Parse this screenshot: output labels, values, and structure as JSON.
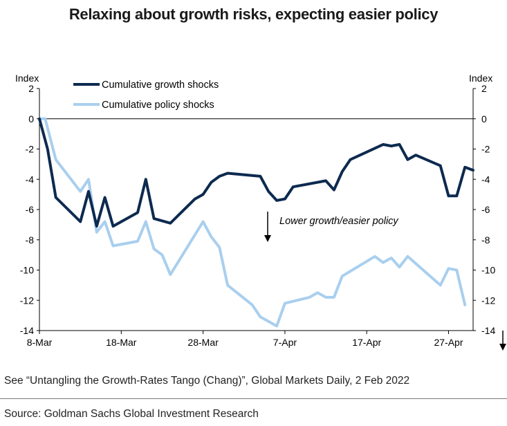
{
  "title": "Relaxing about growth risks, expecting easier policy",
  "footer": {
    "see_note": "See “Untangling the Growth-Rates Tango (Chang)”, Global Markets Daily, 2 Feb 2022",
    "source": "Source: Goldman Sachs Global Investment Research"
  },
  "chart_data": {
    "type": "line",
    "left_axis_label": "Index",
    "right_axis_label": "Index",
    "ylim": [
      -14,
      2
    ],
    "yticks": [
      2,
      0,
      -2,
      -4,
      -6,
      -8,
      -10,
      -12,
      -14
    ],
    "xticks": [
      "8-Mar",
      "18-Mar",
      "28-Mar",
      "7-Apr",
      "17-Apr",
      "27-Apr"
    ],
    "annotation": "Lower growth/easier policy",
    "colors": {
      "growth": "#0d2a4f",
      "policy": "#a9cfee"
    },
    "series": [
      {
        "name": "Cumulative growth shocks",
        "values": [
          [
            0,
            0
          ],
          [
            1,
            -2
          ],
          [
            2,
            -5.2
          ],
          [
            5,
            -6.8
          ],
          [
            6,
            -4.8
          ],
          [
            7,
            -7.1
          ],
          [
            8,
            -5.2
          ],
          [
            9,
            -7.1
          ],
          [
            12,
            -6.2
          ],
          [
            13,
            -4
          ],
          [
            14,
            -6.6
          ],
          [
            16,
            -6.9
          ],
          [
            19,
            -5.3
          ],
          [
            20,
            -5
          ],
          [
            21,
            -4.2
          ],
          [
            22,
            -3.8
          ],
          [
            23,
            -3.6
          ],
          [
            27,
            -3.8
          ],
          [
            28,
            -4.8
          ],
          [
            29,
            -5.4
          ],
          [
            30,
            -5.3
          ],
          [
            31,
            -4.5
          ],
          [
            35,
            -4.1
          ],
          [
            36,
            -4.7
          ],
          [
            37,
            -3.5
          ],
          [
            38,
            -2.7
          ],
          [
            42,
            -1.7
          ],
          [
            43,
            -1.8
          ],
          [
            44,
            -1.7
          ],
          [
            45,
            -2.7
          ],
          [
            46,
            -2.4
          ],
          [
            49,
            -3.1
          ],
          [
            50,
            -5.1
          ],
          [
            51,
            -5.1
          ],
          [
            52,
            -3.2
          ],
          [
            53,
            -3.4
          ]
        ]
      },
      {
        "name": "Cumulative policy shocks",
        "values": [
          [
            0,
            0
          ],
          [
            0.7,
            0
          ],
          [
            2,
            -2.7
          ],
          [
            5,
            -4.8
          ],
          [
            6,
            -4
          ],
          [
            7,
            -7.5
          ],
          [
            8,
            -6.8
          ],
          [
            9,
            -8.4
          ],
          [
            12,
            -8.1
          ],
          [
            13,
            -6.8
          ],
          [
            14,
            -8.6
          ],
          [
            15,
            -9
          ],
          [
            16,
            -10.3
          ],
          [
            20,
            -6.8
          ],
          [
            21,
            -7.8
          ],
          [
            22,
            -8.5
          ],
          [
            23,
            -11
          ],
          [
            26,
            -12.3
          ],
          [
            27,
            -13.1
          ],
          [
            29,
            -13.7
          ],
          [
            30,
            -12.2
          ],
          [
            33,
            -11.8
          ],
          [
            34,
            -11.5
          ],
          [
            35,
            -11.8
          ],
          [
            36,
            -11.8
          ],
          [
            37,
            -10.4
          ],
          [
            41,
            -9.1
          ],
          [
            42,
            -9.5
          ],
          [
            43,
            -9.2
          ],
          [
            44,
            -9.8
          ],
          [
            45,
            -9.1
          ],
          [
            49,
            -11
          ],
          [
            50,
            -9.9
          ],
          [
            51,
            -10
          ],
          [
            52,
            -12.3
          ]
        ]
      }
    ]
  }
}
